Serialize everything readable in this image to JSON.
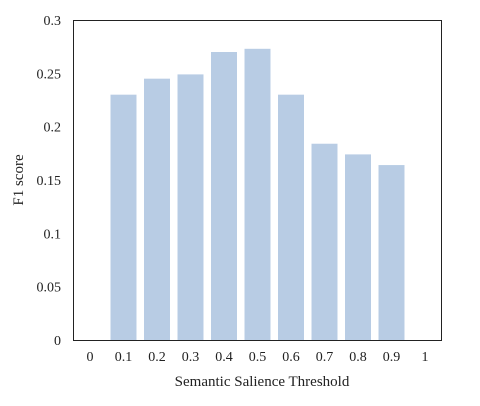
{
  "chart_data": {
    "type": "bar",
    "title": "",
    "xlabel": "Semantic Salience Threshold",
    "ylabel": "F1 score",
    "x_ticks": [
      "0",
      "0.1",
      "0.2",
      "0.3",
      "0.4",
      "0.5",
      "0.6",
      "0.7",
      "0.8",
      "0.9",
      "1"
    ],
    "y_ticks": [
      "0",
      "0.05",
      "0.1",
      "0.15",
      "0.2",
      "0.25",
      "0.3"
    ],
    "xlim": [
      0,
      1
    ],
    "ylim": [
      0,
      0.3
    ],
    "categories": [
      "0.1",
      "0.2",
      "0.3",
      "0.4",
      "0.5",
      "0.6",
      "0.7",
      "0.8",
      "0.9"
    ],
    "x": [
      0.1,
      0.2,
      0.3,
      0.4,
      0.5,
      0.6,
      0.7,
      0.8,
      0.9
    ],
    "values": [
      0.23,
      0.245,
      0.249,
      0.27,
      0.273,
      0.23,
      0.184,
      0.174,
      0.164
    ],
    "grid": false,
    "legend": "none",
    "bar_color": "#b8cce4",
    "axis_color": "#222222"
  }
}
